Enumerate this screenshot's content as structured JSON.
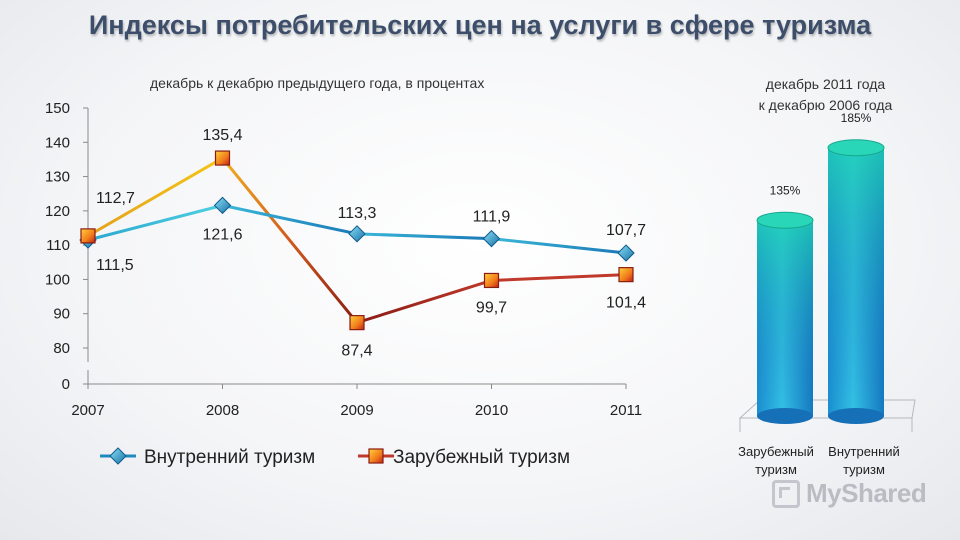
{
  "title": "Индексы потребительских цен на услуги в сфере туризма",
  "chart_data": [
    {
      "type": "line",
      "subtitle": "декабрь к декабрю предыдущего года, в процентах",
      "x": [
        "2007",
        "2008",
        "2009",
        "2010",
        "2011"
      ],
      "y_ticks": [
        "0",
        "80",
        "90",
        "100",
        "110",
        "120",
        "130",
        "140",
        "150"
      ],
      "ylim": [
        80,
        150
      ],
      "axis_break": true,
      "series": [
        {
          "name": "Внутренний туризм",
          "values": [
            111.5,
            121.6,
            113.3,
            111.9,
            107.7
          ],
          "labels": [
            "111,5",
            "121,6",
            "113,3",
            "111,9",
            "107,7"
          ],
          "color": "#1f8ac0",
          "marker": "diamond"
        },
        {
          "name": "Зарубежный туризм",
          "values": [
            112.7,
            135.4,
            87.4,
            99.7,
            101.4
          ],
          "labels": [
            "112,7",
            "135,4",
            "87,4",
            "99,7",
            "101,4"
          ],
          "color": "#c0392b",
          "marker": "square"
        }
      ],
      "legend": "bottom",
      "grid": false
    },
    {
      "type": "bar",
      "subtitle_lines": [
        "декабрь 2011 года",
        "к декабрю 2006 года"
      ],
      "categories": [
        "Зарубежный туризм",
        "Внутренний туризм"
      ],
      "category_lines": [
        [
          "Зарубежный",
          "туризм"
        ],
        [
          "Внутренний",
          "туризм"
        ]
      ],
      "values": [
        135,
        185
      ],
      "labels": [
        "135%",
        "185%"
      ],
      "style": "3d-cylinder",
      "color": "#1fa8d8"
    }
  ],
  "watermark": "MyShared"
}
